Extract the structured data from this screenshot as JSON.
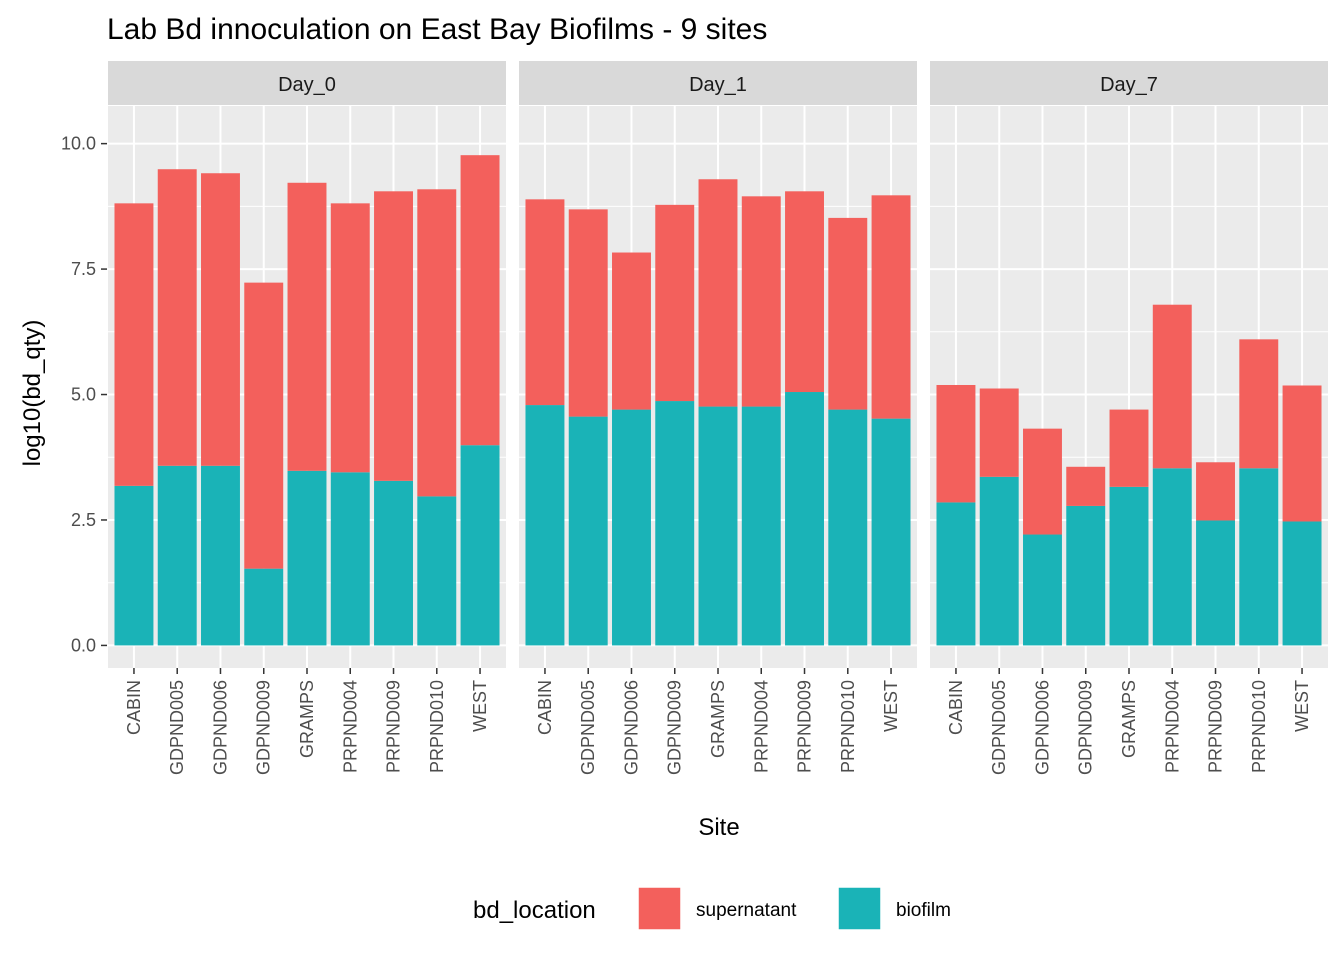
{
  "chart_data": {
    "type": "bar",
    "stacked": true,
    "title": "Lab Bd innoculation on East Bay Biofilms - 9 sites",
    "xlabel": "Site",
    "ylabel": "log10(bd_qty)",
    "ylim": [
      -0.45,
      10.75
    ],
    "yticks": [
      0.0,
      2.5,
      5.0,
      7.5,
      10.0
    ],
    "ytick_labels": [
      "0.0",
      "2.5",
      "5.0",
      "7.5",
      "10.0"
    ],
    "grid": true,
    "categories": [
      "CABIN",
      "GDPND005",
      "GDPND006",
      "GDPND009",
      "GRAMPS",
      "PRPND004",
      "PRPND009",
      "PRPND010",
      "WEST"
    ],
    "facets": [
      {
        "label": "Day_0",
        "biofilm": [
          3.18,
          3.58,
          3.58,
          1.53,
          3.48,
          3.45,
          3.28,
          2.97,
          3.99
        ],
        "total": [
          8.81,
          9.49,
          9.41,
          7.23,
          9.22,
          8.81,
          9.05,
          9.09,
          9.77
        ]
      },
      {
        "label": "Day_1",
        "biofilm": [
          4.79,
          4.56,
          4.7,
          4.87,
          4.76,
          4.76,
          5.05,
          4.7,
          4.52
        ],
        "total": [
          8.89,
          8.69,
          7.83,
          8.78,
          9.29,
          8.95,
          9.05,
          8.52,
          8.97
        ]
      },
      {
        "label": "Day_7",
        "biofilm": [
          2.85,
          3.36,
          2.21,
          2.78,
          3.16,
          3.53,
          2.49,
          3.53,
          2.47
        ],
        "total": [
          5.19,
          5.12,
          4.32,
          3.56,
          4.7,
          6.79,
          3.65,
          6.1,
          5.18
        ]
      }
    ],
    "legend": {
      "title": "bd_location",
      "position": "bottom",
      "items": [
        {
          "name": "supernatant",
          "color": "#F8766D"
        },
        {
          "name": "biofilm",
          "color": "#00BFC4"
        }
      ]
    },
    "colors": {
      "supernatant": "#F3605C",
      "biofilm": "#1AB3B7",
      "panel_bg": "#EBEBEB",
      "strip_bg": "#D9D9D9",
      "grid": "#FFFFFF"
    }
  }
}
